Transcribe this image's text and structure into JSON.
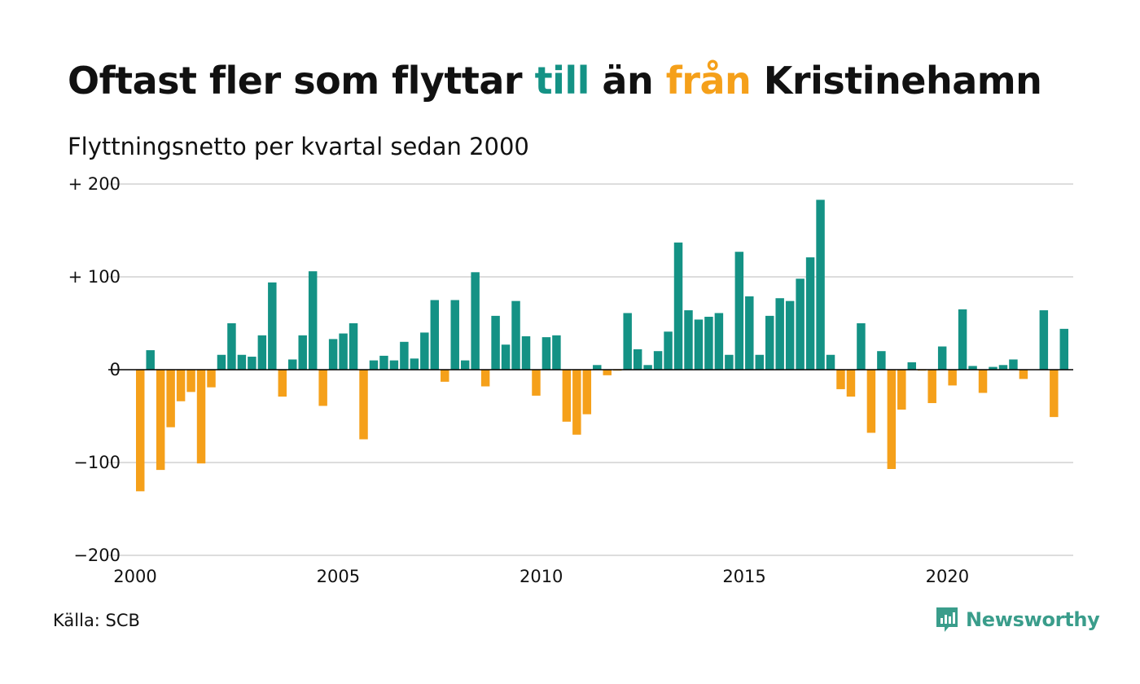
{
  "header": {
    "title_part1": "Oftast fler som flyttar ",
    "title_till": "till",
    "title_part2": " än ",
    "title_fran": "från",
    "title_part3": " Kristinehamn",
    "subtitle": "Flyttningsnetto per kvartal sedan 2000"
  },
  "colors": {
    "positive": "#149285",
    "negative": "#f5a01a",
    "gridline": "#dddddd",
    "zero_line": "#000000",
    "brand": "#3a9d8b"
  },
  "chart_data": {
    "type": "bar",
    "title": "Oftast fler som flyttar till än från Kristinehamn",
    "subtitle": "Flyttningsnetto per kvartal sedan 2000",
    "x_start": 2000.0,
    "x_step": 0.25,
    "xlim": [
      2000,
      2023.1
    ],
    "ylim": [
      -200,
      200
    ],
    "yticks": [
      200,
      100,
      0,
      -100,
      -200
    ],
    "ytick_labels": [
      "+ 200",
      "+ 100",
      "0",
      "−100",
      "−200"
    ],
    "xticks": [
      2000,
      2005,
      2010,
      2015,
      2020
    ],
    "xtick_labels": [
      "2000",
      "2005",
      "2010",
      "2015",
      "2020"
    ],
    "grid": true,
    "values": [
      -131,
      21,
      -108,
      -62,
      -34,
      -24,
      -101,
      -19,
      16,
      50,
      16,
      14,
      37,
      94,
      -29,
      11,
      37,
      106,
      -39,
      33,
      39,
      50,
      -75,
      10,
      15,
      10,
      30,
      12,
      40,
      75,
      -13,
      75,
      10,
      105,
      -18,
      58,
      27,
      74,
      36,
      -28,
      35,
      37,
      -56,
      -70,
      -48,
      5,
      -6,
      -1,
      61,
      22,
      5,
      20,
      41,
      137,
      64,
      54,
      57,
      61,
      16,
      127,
      79,
      16,
      58,
      77,
      74,
      98,
      121,
      183,
      16,
      -21,
      -29,
      50,
      -68,
      20,
      -107,
      -43,
      8,
      -1,
      -36,
      25,
      -17,
      65,
      4,
      -25,
      3,
      5,
      11,
      -10,
      0,
      64,
      -51,
      44
    ]
  },
  "footer": {
    "source": "Källa: SCB",
    "brand": "Newsworthy"
  },
  "icons": {
    "logo": "newsworthy-chart-logo-icon"
  }
}
